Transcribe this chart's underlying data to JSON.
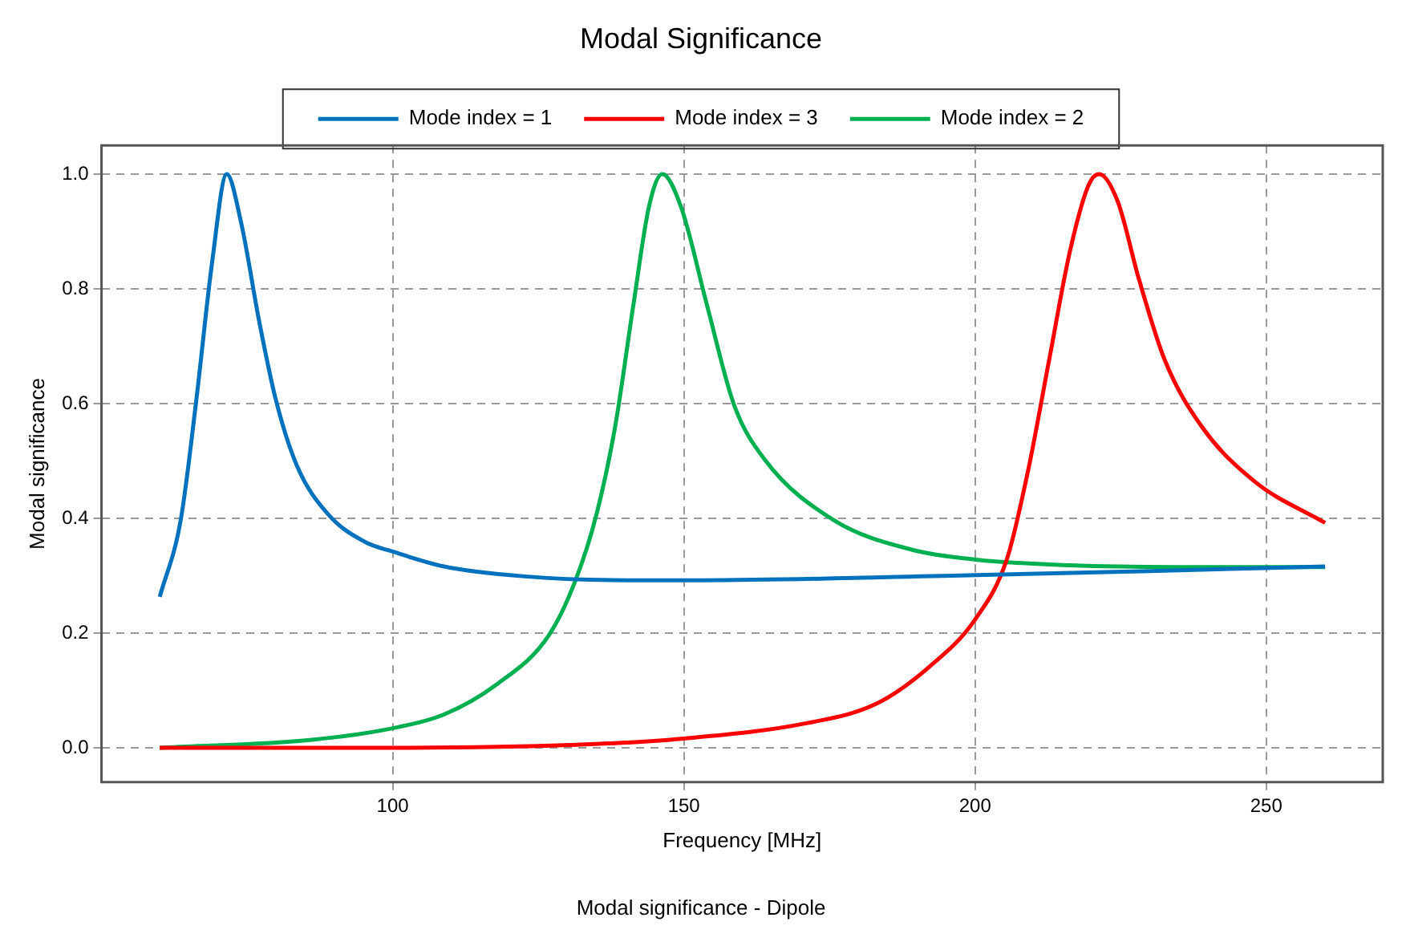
{
  "chart_data": {
    "type": "line",
    "title": "Modal Significance",
    "xlabel": "Frequency [MHz]",
    "ylabel": "Modal significance",
    "annotations": [
      "Modal significance - Dipole"
    ],
    "xlim": [
      50,
      270
    ],
    "xticks": [
      100,
      150,
      200,
      250
    ],
    "ylim": [
      -0.06,
      1.05
    ],
    "yticks": [
      {
        "value": 0,
        "label": "0.0"
      },
      0.2,
      0.4,
      0.6,
      0.8,
      {
        "value": 1,
        "label": "1.0"
      }
    ],
    "grid": true,
    "legend": "top",
    "marker": "none",
    "line_style": "solid",
    "series": [
      {
        "name": "Mode index = 1",
        "color": "#0072bd",
        "x": [
          60,
          63.6,
          66.3,
          69.0,
          71.5,
          74.0,
          77.1,
          79.9,
          83.5,
          88.9,
          95.2,
          100,
          108.8,
          122.3,
          140.4,
          153.1,
          200.1,
          230,
          260.1
        ],
        "values": [
          0.263,
          0.397,
          0.608,
          0.847,
          1.0,
          0.914,
          0.742,
          0.608,
          0.493,
          0.407,
          0.359,
          0.342,
          0.316,
          0.299,
          0.292,
          0.292,
          0.301,
          0.308,
          0.316
        ]
      },
      {
        "name": "Mode index = 3",
        "color": "#ff0000",
        "x": [
          60,
          100,
          131.4,
          150,
          171.2,
          182.9,
          191.9,
          200.1,
          205.5,
          209.1,
          212.7,
          216.3,
          219.5,
          221.3,
          224.5,
          228.1,
          232.6,
          238.9,
          248.0,
          260.1
        ],
        "values": [
          0.0,
          0.0,
          0.005,
          0.016,
          0.043,
          0.076,
          0.139,
          0.225,
          0.33,
          0.483,
          0.675,
          0.866,
          0.981,
          1.0,
          0.952,
          0.818,
          0.675,
          0.56,
          0.464,
          0.392
        ]
      },
      {
        "name": "Mode index = 2",
        "color": "#00b050",
        "x": [
          60,
          86.2,
          100,
          108.8,
          117.8,
          126.8,
          131.4,
          135.0,
          138.2,
          141.3,
          144.0,
          146.3,
          149.5,
          154.0,
          158.6,
          163.9,
          175.7,
          189.2,
          200.1,
          216.3,
          234.4,
          260.1
        ],
        "values": [
          0.0,
          0.014,
          0.034,
          0.058,
          0.11,
          0.196,
          0.292,
          0.407,
          0.56,
          0.77,
          0.943,
          1.0,
          0.943,
          0.77,
          0.598,
          0.502,
          0.397,
          0.345,
          0.328,
          0.318,
          0.315,
          0.315
        ]
      }
    ]
  }
}
